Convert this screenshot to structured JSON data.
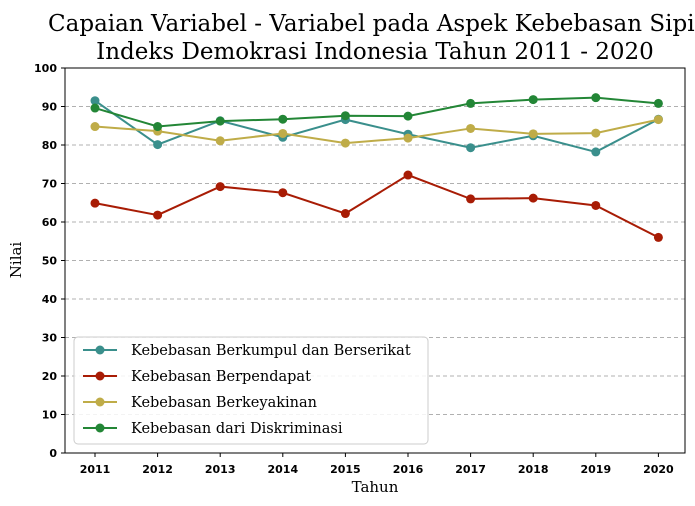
{
  "chart_data": {
    "type": "line",
    "title": [
      "Capaian Variabel - Variabel pada Aspek Kebebasan Sipil",
      "Indeks Demokrasi Indonesia Tahun 2011 - 2020"
    ],
    "xlabel": "Tahun",
    "ylabel": "Nilai",
    "x": [
      "2011",
      "2012",
      "2013",
      "2014",
      "2015",
      "2016",
      "2017",
      "2018",
      "2019",
      "2020"
    ],
    "yticks": [
      "0",
      "10",
      "20",
      "30",
      "40",
      "50",
      "60",
      "70",
      "80",
      "90",
      "100"
    ],
    "ylim": [
      0,
      100
    ],
    "grid": "horizontal dashed",
    "legend_position": "lower-left",
    "series": [
      {
        "name": "Kebebasan Berkumpul dan Berserikat",
        "color": "#3a8f8c",
        "values": [
          91.5,
          80.1,
          86.3,
          82.0,
          86.6,
          82.8,
          79.3,
          82.4,
          78.2,
          86.7
        ]
      },
      {
        "name": "Kebebasan Berpendapat",
        "color": "#a81c05",
        "values": [
          64.9,
          61.8,
          69.2,
          67.6,
          62.2,
          72.2,
          66.0,
          66.2,
          64.3,
          56.0
        ]
      },
      {
        "name": "Kebebasan Berkeyakinan",
        "color": "#bfac48",
        "values": [
          84.8,
          83.6,
          81.1,
          83.0,
          80.5,
          81.8,
          84.3,
          82.9,
          83.1,
          86.6
        ]
      },
      {
        "name": "Kebebasan dari Diskriminasi",
        "color": "#238636",
        "values": [
          89.6,
          84.8,
          86.2,
          86.7,
          87.6,
          87.5,
          90.8,
          91.8,
          92.3,
          90.8
        ]
      }
    ]
  }
}
